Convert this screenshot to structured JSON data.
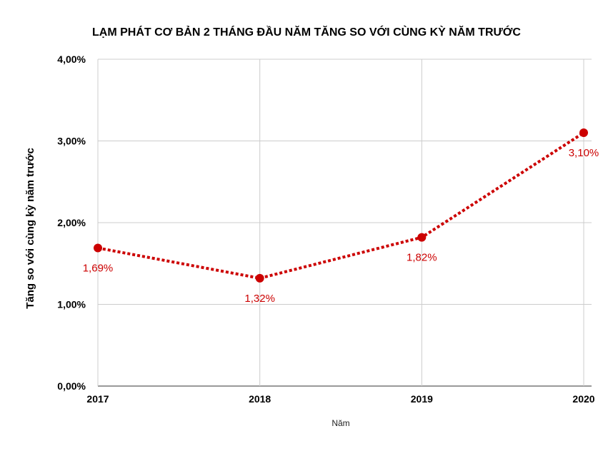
{
  "chart_data": {
    "type": "line",
    "title": "LẠM PHÁT CƠ BẢN 2 THÁNG ĐẦU NĂM TĂNG SO VỚI CÙNG KỲ NĂM TRƯỚC",
    "xlabel": "Năm",
    "ylabel": "Tăng so với cùng kỳ năm trước",
    "categories": [
      "2017",
      "2018",
      "2019",
      "2020"
    ],
    "series": [
      {
        "values": [
          1.69,
          1.32,
          1.82,
          3.1
        ],
        "labels": [
          "1,69%",
          "1,32%",
          "1,82%",
          "3,10%"
        ],
        "color": "#cc0000"
      }
    ],
    "ylim": [
      0,
      4
    ],
    "yticks": [
      "0,00%",
      "1,00%",
      "2,00%",
      "3,00%",
      "4,00%"
    ],
    "grid": true,
    "line_style": "dotted"
  }
}
